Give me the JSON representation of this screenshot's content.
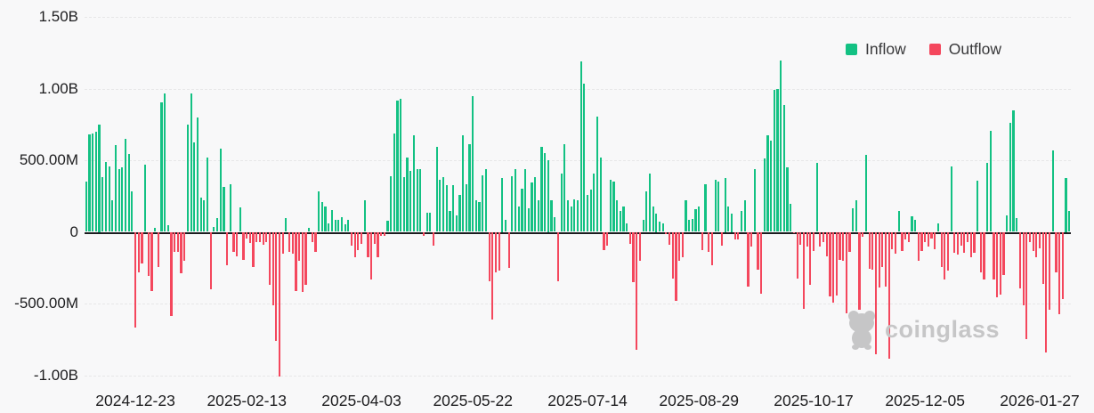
{
  "chart_data": {
    "type": "bar",
    "title": "",
    "positive_series": "Inflow",
    "negative_series": "Outflow",
    "values_unit": "millions",
    "grid": true,
    "legend_position": "top-right",
    "values": [
      354,
      681,
      687,
      698,
      750,
      385,
      490,
      458,
      219,
      604,
      437,
      448,
      646,
      542,
      281,
      -667,
      -281,
      -219,
      469,
      -307,
      -411,
      30,
      -245,
      903,
      966,
      44,
      -587,
      -142,
      -142,
      -287,
      -204,
      748,
      966,
      624,
      800,
      241,
      220,
      520,
      -400,
      34,
      96,
      582,
      313,
      -235,
      334,
      -142,
      -173,
      169,
      -194,
      -49,
      -80,
      -245,
      -69,
      -69,
      -90,
      -69,
      -370,
      -515,
      -763,
      -1010,
      -152,
      98,
      -142,
      -152,
      -411,
      -204,
      -421,
      -370,
      31,
      -69,
      -142,
      281,
      208,
      177,
      62,
      152,
      83,
      83,
      104,
      52,
      83,
      -94,
      -177,
      -125,
      -83,
      219,
      -177,
      -333,
      -83,
      -177,
      -31,
      -31,
      77,
      390,
      687,
      917,
      927,
      385,
      521,
      427,
      677,
      437,
      437,
      -30,
      135,
      135,
      -94,
      594,
      365,
      385,
      327,
      146,
      323,
      115,
      260,
      677,
      333,
      614,
      948,
      219,
      208,
      396,
      437,
      -344,
      -614,
      -281,
      -271,
      375,
      83,
      -250,
      390,
      437,
      177,
      302,
      437,
      167,
      344,
      385,
      219,
      594,
      552,
      500,
      219,
      104,
      -344,
      406,
      614,
      219,
      177,
      229,
      219,
      1187,
      1037,
      260,
      292,
      406,
      802,
      521,
      -125,
      -94,
      365,
      354,
      219,
      146,
      177,
      62,
      -84,
      -350,
      -825,
      -204,
      83,
      281,
      406,
      177,
      125,
      73,
      62,
      -18,
      -90,
      -328,
      -480,
      -204,
      -175,
      219,
      83,
      90,
      156,
      177,
      -130,
      333,
      -142,
      -235,
      365,
      354,
      -94,
      375,
      177,
      125,
      -55,
      -55,
      146,
      219,
      -380,
      -100,
      437,
      -266,
      -431,
      510,
      677,
      635,
      989,
      994,
      1198,
      885,
      448,
      198,
      -7,
      -328,
      -90,
      -535,
      -100,
      -370,
      -131,
      483,
      -100,
      -69,
      -173,
      -452,
      -494,
      -442,
      -194,
      -204,
      -566,
      -142,
      167,
      219,
      -545,
      -35,
      535,
      -256,
      -266,
      -856,
      -390,
      -245,
      -380,
      -887,
      -121,
      -152,
      146,
      -131,
      -50,
      -69,
      110,
      85,
      -204,
      -131,
      -69,
      -100,
      -48,
      -121,
      60,
      -245,
      -333,
      -271,
      458,
      -146,
      -156,
      -94,
      -146,
      -73,
      -177,
      -146,
      358,
      -281,
      -333,
      479,
      708,
      -333,
      -458,
      -437,
      -302,
      115,
      760,
      848,
      98,
      -396,
      -510,
      -750,
      -73,
      -135,
      -177,
      -115,
      -365,
      -844,
      -541,
      567,
      -281,
      -573,
      -469,
      375,
      146
    ],
    "y_ticks": [
      {
        "label": "1.50B",
        "value": 1500
      },
      {
        "label": "1.00B",
        "value": 1000
      },
      {
        "label": "500.00M",
        "value": 500
      },
      {
        "label": "0",
        "value": 0
      },
      {
        "label": "-500.00M",
        "value": -500
      },
      {
        "label": "-1.00B",
        "value": -1000
      }
    ],
    "x_ticks": [
      {
        "label": "2024-12-23",
        "index": 15
      },
      {
        "label": "2025-02-13",
        "index": 49
      },
      {
        "label": "2025-04-03",
        "index": 84
      },
      {
        "label": "2025-05-22",
        "index": 118
      },
      {
        "label": "2025-07-14",
        "index": 153
      },
      {
        "label": "2025-08-29",
        "index": 187
      },
      {
        "label": "2025-10-17",
        "index": 222
      },
      {
        "label": "2025-12-05",
        "index": 256
      },
      {
        "label": "2026-01-27",
        "index": 291
      }
    ]
  },
  "legend": {
    "inflow_label": "Inflow",
    "outflow_label": "Outflow"
  },
  "watermark": {
    "text": "coinglass"
  },
  "colors": {
    "inflow": "#13c183",
    "outflow": "#f4475d",
    "background": "#f8f8f9",
    "axis_text": "#1d1d1f",
    "grid": "#e7e7e8",
    "zero_line": "#1b1c1f",
    "watermark": "#c6c6c7"
  }
}
